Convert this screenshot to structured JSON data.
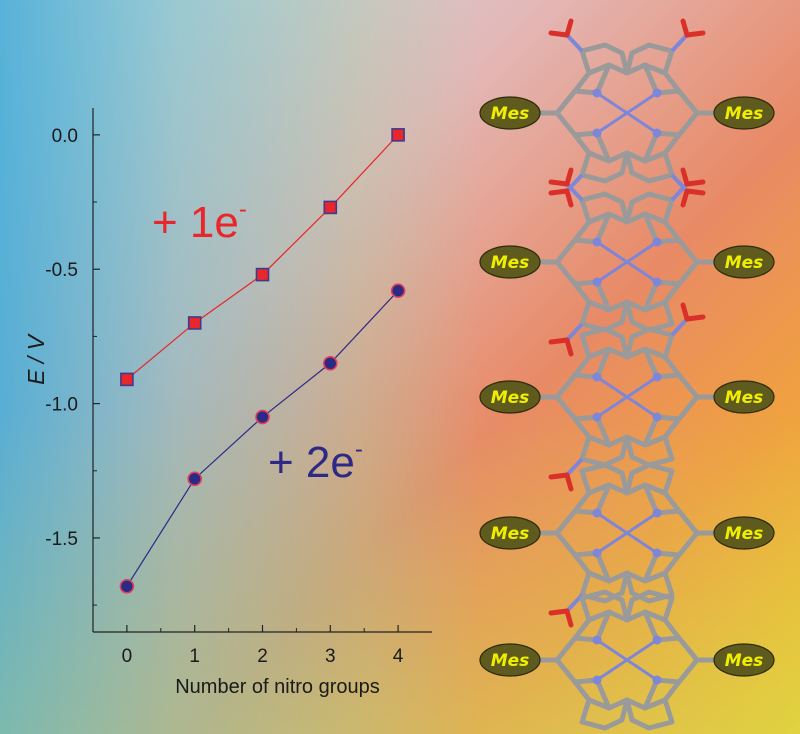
{
  "chart_data": {
    "type": "line",
    "xlabel": "Number of nitro groups",
    "ylabel": "E / V",
    "x": [
      0,
      1,
      2,
      3,
      4
    ],
    "xlim": [
      -0.5,
      4.5
    ],
    "ylim": [
      -1.85,
      0.1
    ],
    "x_ticks": [
      "0",
      "1",
      "2",
      "3",
      "4"
    ],
    "y_ticks": [
      {
        "value": 0.0,
        "label": "0.0"
      },
      {
        "value": -0.5,
        "label": "-0.5"
      },
      {
        "value": -1.0,
        "label": "-1.0"
      },
      {
        "value": -1.5,
        "label": "-1.5"
      }
    ],
    "y_minor_ticks": [
      -0.25,
      -0.75,
      -1.25,
      -1.75
    ],
    "grid": false,
    "series": [
      {
        "name": "+ 1e-",
        "values": [
          -0.91,
          -0.7,
          -0.52,
          -0.27,
          0.0
        ],
        "marker": "square",
        "color": "#e8262b",
        "marker_edge": "#3c3c8c",
        "annotation": {
          "text": "+ 1e",
          "superscript": "-",
          "color": "#e8262b"
        }
      },
      {
        "name": "+ 2e-",
        "values": [
          -1.68,
          -1.28,
          -1.05,
          -0.85,
          -0.58
        ],
        "marker": "circle",
        "color": "#2c2a85",
        "marker_edge": "#e0405a",
        "annotation": {
          "text": "+ 2e",
          "superscript": "-",
          "color": "#2c2a85"
        }
      }
    ]
  },
  "molecules": [
    {
      "substituent_label": "Mes",
      "nitro_groups": 4
    },
    {
      "substituent_label": "Mes",
      "nitro_groups": 3
    },
    {
      "substituent_label": "Mes",
      "nitro_groups": 2
    },
    {
      "substituent_label": "Mes",
      "nitro_groups": 1
    },
    {
      "substituent_label": "Mes",
      "nitro_groups": 0
    }
  ],
  "colors": {
    "bond_gray": "#9a9a9a",
    "nitrogen_blue": "#7d86d8",
    "oxygen_red": "#d9302a",
    "mes_fill": "#5f5a1d",
    "mes_text": "#f0ef00"
  }
}
